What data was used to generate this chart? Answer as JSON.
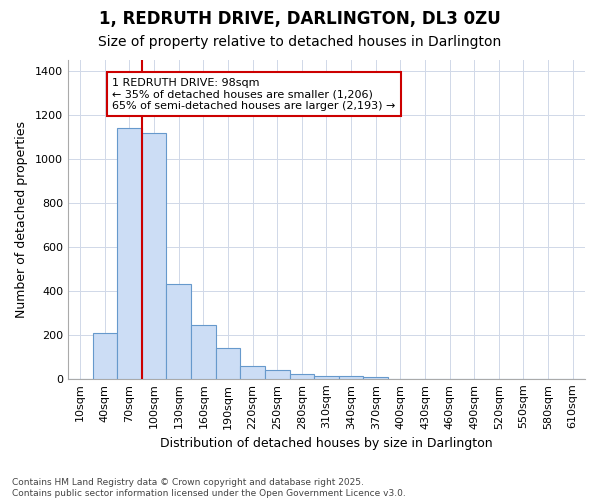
{
  "title1": "1, REDRUTH DRIVE, DARLINGTON, DL3 0ZU",
  "title2": "Size of property relative to detached houses in Darlington",
  "xlabel": "Distribution of detached houses by size in Darlington",
  "ylabel": "Number of detached properties",
  "bar_categories": [
    "10sqm",
    "40sqm",
    "70sqm",
    "100sqm",
    "130sqm",
    "160sqm",
    "190sqm",
    "220sqm",
    "250sqm",
    "280sqm",
    "310sqm",
    "340sqm",
    "370sqm",
    "400sqm",
    "430sqm",
    "460sqm",
    "490sqm",
    "520sqm",
    "550sqm",
    "580sqm",
    "610sqm"
  ],
  "bar_values": [
    0,
    210,
    1140,
    1120,
    430,
    245,
    140,
    58,
    42,
    22,
    15,
    12,
    10,
    0,
    0,
    0,
    0,
    0,
    0,
    0,
    0
  ],
  "bar_color": "#ccddf5",
  "bar_edge_color": "#6699cc",
  "background_color": "#ffffff",
  "plot_bg_color": "#ffffff",
  "grid_color": "#d0d8e8",
  "vline_x": 2.5,
  "vline_color": "#cc0000",
  "annotation_text": "1 REDRUTH DRIVE: 98sqm\n← 35% of detached houses are smaller (1,206)\n65% of semi-detached houses are larger (2,193) →",
  "annotation_box_color": "#ffffff",
  "annotation_box_edge": "#cc0000",
  "ylim": [
    0,
    1450
  ],
  "yticks": [
    0,
    200,
    400,
    600,
    800,
    1000,
    1200,
    1400
  ],
  "footnote": "Contains HM Land Registry data © Crown copyright and database right 2025.\nContains public sector information licensed under the Open Government Licence v3.0.",
  "title_fontsize": 12,
  "subtitle_fontsize": 10,
  "axis_fontsize": 9,
  "tick_fontsize": 8,
  "annot_fontsize": 8,
  "footnote_fontsize": 6.5
}
